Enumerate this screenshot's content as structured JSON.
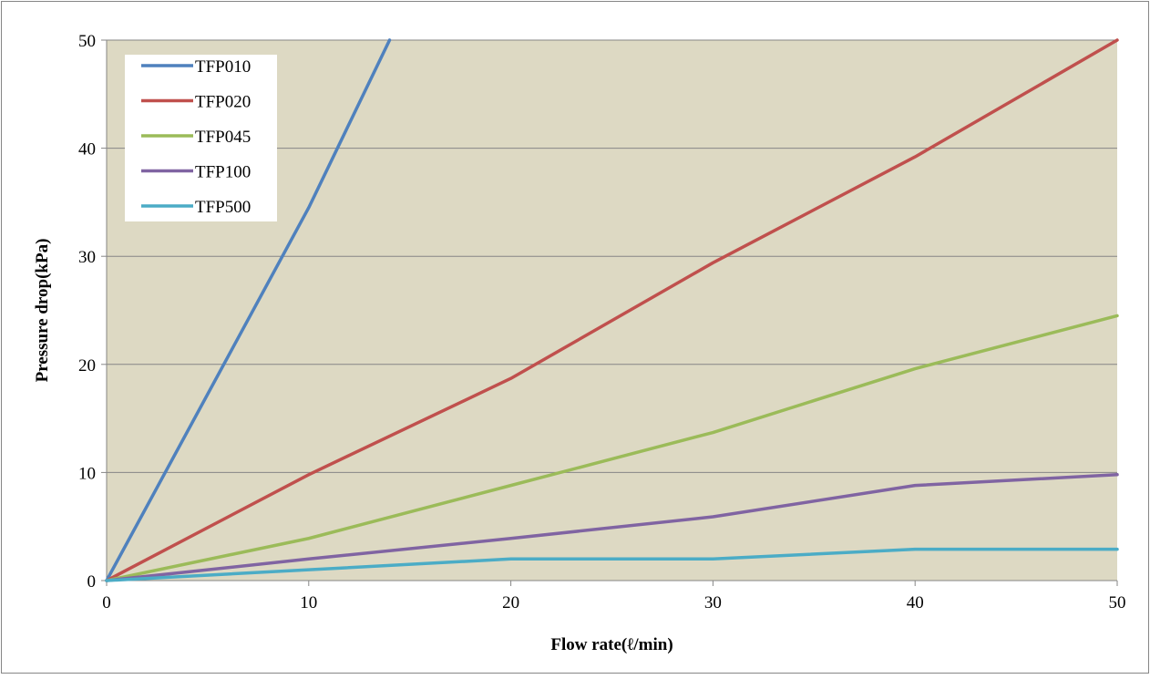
{
  "chart_data": {
    "type": "line",
    "title": "",
    "xlabel": "Flow rate(ℓ/min)",
    "ylabel": "Pressure drop(kPa)",
    "xlim": [
      0,
      50
    ],
    "ylim": [
      0,
      50
    ],
    "x_ticks": [
      0,
      10,
      20,
      30,
      40,
      50
    ],
    "y_ticks": [
      0,
      10,
      20,
      30,
      40,
      50
    ],
    "grid": "horizontal",
    "legend_position": "top-left",
    "plot_background": "#ddd9c3",
    "gridline_color": "#868686",
    "series": [
      {
        "name": "TFP010",
        "color": "#4f81bd",
        "x": [
          0,
          10,
          14
        ],
        "y": [
          0,
          34.5,
          50
        ]
      },
      {
        "name": "TFP020",
        "color": "#c0504d",
        "x": [
          0,
          10,
          20,
          30,
          40,
          50
        ],
        "y": [
          0,
          9.8,
          18.7,
          29.4,
          39.2,
          50
        ]
      },
      {
        "name": "TFP045",
        "color": "#9bbb59",
        "x": [
          0,
          10,
          20,
          30,
          40,
          50
        ],
        "y": [
          0,
          3.9,
          8.8,
          13.7,
          19.6,
          24.5
        ]
      },
      {
        "name": "TFP100",
        "color": "#8064a2",
        "x": [
          0,
          10,
          20,
          30,
          40,
          50
        ],
        "y": [
          0,
          2.0,
          3.9,
          5.9,
          8.8,
          9.8
        ]
      },
      {
        "name": "TFP500",
        "color": "#4bacc6",
        "x": [
          0,
          10,
          20,
          30,
          40,
          50
        ],
        "y": [
          0,
          1.0,
          2.0,
          2.0,
          2.9,
          2.9
        ]
      }
    ]
  }
}
